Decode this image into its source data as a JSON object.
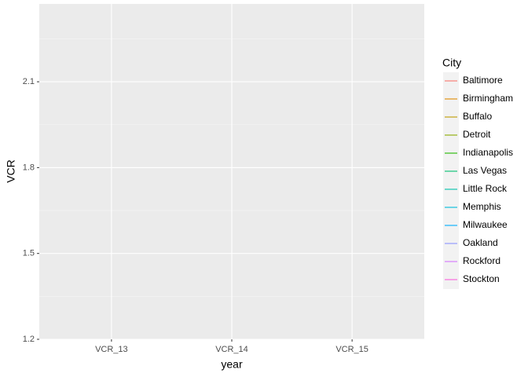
{
  "chart_data": {
    "type": "line",
    "x_label": "year",
    "y_label": "VCR",
    "legend_title": "City",
    "categories": [
      "VCR_13",
      "VCR_14",
      "VCR_15"
    ],
    "series": [
      {
        "name": "Baltimore",
        "color": "#F8766D",
        "values": [
          null,
          null,
          null
        ]
      },
      {
        "name": "Birmingham",
        "color": "#E18A00",
        "values": [
          null,
          null,
          null
        ]
      },
      {
        "name": "Buffalo",
        "color": "#BE9C00",
        "values": [
          null,
          null,
          null
        ]
      },
      {
        "name": "Detroit",
        "color": "#8CAB00",
        "values": [
          null,
          null,
          null
        ]
      },
      {
        "name": "Indianapolis",
        "color": "#24B700",
        "values": [
          null,
          null,
          null
        ]
      },
      {
        "name": "Las Vegas",
        "color": "#00BE70",
        "values": [
          null,
          null,
          null
        ]
      },
      {
        "name": "Little Rock",
        "color": "#00C1AB",
        "values": [
          null,
          null,
          null
        ]
      },
      {
        "name": "Memphis",
        "color": "#00BBDA",
        "values": [
          null,
          null,
          null
        ]
      },
      {
        "name": "Milwaukee",
        "color": "#00ACFC",
        "values": [
          null,
          null,
          null
        ]
      },
      {
        "name": "Oakland",
        "color": "#8B93FF",
        "values": [
          null,
          null,
          null
        ]
      },
      {
        "name": "Rockford",
        "color": "#D575FE",
        "values": [
          null,
          null,
          null
        ]
      },
      {
        "name": "Stockton",
        "color": "#F962DD",
        "values": [
          null,
          null,
          null
        ]
      }
    ],
    "ylim": [
      1.2,
      2.372
    ],
    "yticks": [
      1.2,
      1.5,
      1.8,
      2.1
    ],
    "grid": true,
    "legend_position": "right"
  }
}
